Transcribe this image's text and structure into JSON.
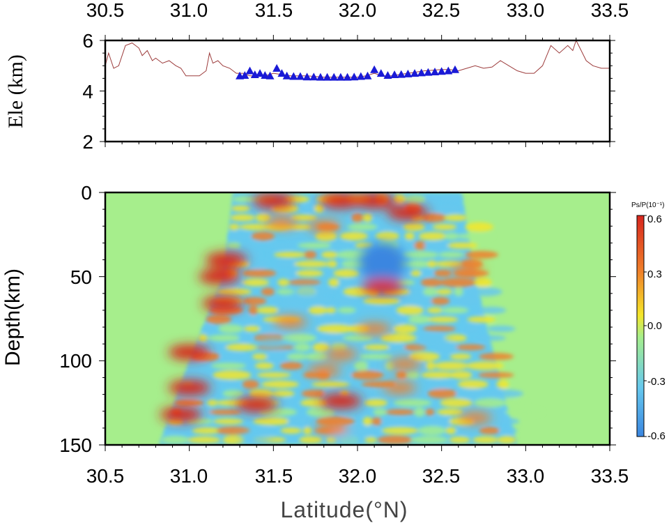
{
  "chart_data": [
    {
      "type": "line",
      "panel": "elevation-profile",
      "ylabel": "Ele (km)",
      "xlim": [
        30.5,
        33.5
      ],
      "ylim": [
        2,
        6
      ],
      "x_ticks": [
        "30.5",
        "31.0",
        "31.5",
        "32.0",
        "32.5",
        "33.0",
        "33.5"
      ],
      "y_ticks": [
        "2",
        "4",
        "6"
      ],
      "line_color": "#9c3b3b",
      "marker_color": "#1a1ad6",
      "series": [
        {
          "kind": "line",
          "x": [
            30.5,
            30.52,
            30.55,
            30.58,
            30.62,
            30.66,
            30.7,
            30.72,
            30.75,
            30.78,
            30.8,
            30.84,
            30.88,
            30.92,
            30.95,
            30.98,
            31.02,
            31.06,
            31.1,
            31.12,
            31.14,
            31.17,
            31.2,
            31.24,
            31.28,
            31.32,
            31.36,
            31.4,
            31.45,
            31.5,
            31.55,
            31.6,
            31.7,
            31.8,
            31.9,
            32.0,
            32.05,
            32.1,
            32.15,
            32.2,
            32.25,
            32.3,
            32.4,
            32.5,
            32.55,
            32.6,
            32.65,
            32.7,
            32.75,
            32.8,
            32.85,
            32.9,
            32.95,
            33.0,
            33.05,
            33.1,
            33.15,
            33.2,
            33.25,
            33.28,
            33.3,
            33.33,
            33.36,
            33.4,
            33.45,
            33.5
          ],
          "y": [
            5.0,
            5.5,
            4.9,
            5.0,
            5.8,
            5.9,
            5.7,
            5.4,
            5.6,
            5.2,
            5.3,
            5.1,
            5.2,
            5.0,
            4.9,
            4.6,
            4.6,
            4.6,
            4.8,
            5.5,
            5.1,
            5.2,
            5.0,
            4.9,
            4.7,
            4.7,
            4.6,
            4.6,
            4.6,
            4.7,
            4.65,
            4.6,
            4.6,
            4.55,
            4.55,
            4.55,
            4.6,
            4.7,
            4.6,
            4.6,
            4.65,
            4.7,
            4.8,
            4.85,
            4.85,
            4.8,
            4.9,
            5.0,
            4.9,
            4.95,
            5.2,
            5.0,
            4.8,
            4.7,
            4.7,
            5.0,
            5.8,
            5.5,
            5.8,
            5.6,
            6.0,
            5.6,
            5.2,
            5.0,
            4.9,
            4.9
          ]
        },
        {
          "kind": "station-markers",
          "x": [
            31.3,
            31.33,
            31.36,
            31.39,
            31.42,
            31.45,
            31.48,
            31.52,
            31.55,
            31.58,
            31.62,
            31.66,
            31.7,
            31.74,
            31.78,
            31.82,
            31.86,
            31.9,
            31.94,
            31.98,
            32.02,
            32.06,
            32.1,
            32.14,
            32.18,
            32.22,
            32.26,
            32.3,
            32.34,
            32.38,
            32.42,
            32.46,
            32.5,
            32.54,
            32.58
          ],
          "y": [
            4.6,
            4.62,
            4.8,
            4.65,
            4.7,
            4.62,
            4.6,
            4.9,
            4.7,
            4.6,
            4.58,
            4.58,
            4.56,
            4.56,
            4.55,
            4.55,
            4.55,
            4.55,
            4.55,
            4.56,
            4.58,
            4.6,
            4.85,
            4.7,
            4.62,
            4.65,
            4.66,
            4.68,
            4.7,
            4.72,
            4.74,
            4.76,
            4.78,
            4.8,
            4.85
          ]
        }
      ]
    },
    {
      "type": "heatmap",
      "panel": "receiver-function-section",
      "xlabel": "Latitude(°N)",
      "ylabel": "Depth(km)",
      "xlim": [
        30.5,
        33.5
      ],
      "ylim": [
        150,
        0
      ],
      "x_ticks": [
        "30.5",
        "31.0",
        "31.5",
        "32.0",
        "32.5",
        "33.0",
        "33.5"
      ],
      "y_ticks": [
        "0",
        "50",
        "100",
        "150"
      ],
      "background_color": "#a6ee8c",
      "coverage": {
        "depths": [
          0,
          50,
          100,
          150
        ],
        "lat_min": [
          31.26,
          31.2,
          31.0,
          30.82
        ],
        "lat_max": [
          32.62,
          32.7,
          32.82,
          32.95
        ]
      },
      "anomalies": [
        {
          "lat": 31.5,
          "depth": 5,
          "value": 0.6
        },
        {
          "lat": 31.9,
          "depth": 5,
          "value": 0.6
        },
        {
          "lat": 32.1,
          "depth": 5,
          "value": 0.6
        },
        {
          "lat": 32.3,
          "depth": 12,
          "value": 0.6
        },
        {
          "lat": 31.55,
          "depth": 18,
          "value": 0.5
        },
        {
          "lat": 31.8,
          "depth": 20,
          "value": 0.5
        },
        {
          "lat": 32.15,
          "depth": 42,
          "value": -0.6
        },
        {
          "lat": 31.22,
          "depth": 40,
          "value": 0.6
        },
        {
          "lat": 31.18,
          "depth": 50,
          "value": 0.6
        },
        {
          "lat": 32.15,
          "depth": 56,
          "value": 0.6
        },
        {
          "lat": 31.2,
          "depth": 66,
          "value": 0.6
        },
        {
          "lat": 32.65,
          "depth": 46,
          "value": 0.5
        },
        {
          "lat": 31.6,
          "depth": 77,
          "value": 0.4
        },
        {
          "lat": 32.1,
          "depth": 81,
          "value": 0.5
        },
        {
          "lat": 31.0,
          "depth": 95,
          "value": 0.6
        },
        {
          "lat": 31.9,
          "depth": 96,
          "value": 0.5
        },
        {
          "lat": 32.28,
          "depth": 102,
          "value": 0.5
        },
        {
          "lat": 31.8,
          "depth": 106,
          "value": 0.5
        },
        {
          "lat": 31.0,
          "depth": 116,
          "value": 0.6
        },
        {
          "lat": 32.25,
          "depth": 116,
          "value": 0.5
        },
        {
          "lat": 31.4,
          "depth": 126,
          "value": 0.6
        },
        {
          "lat": 31.9,
          "depth": 124,
          "value": 0.6
        },
        {
          "lat": 30.95,
          "depth": 132,
          "value": 0.6
        },
        {
          "lat": 32.7,
          "depth": 134,
          "value": 0.5
        },
        {
          "lat": 31.85,
          "depth": 140,
          "value": 0.5
        },
        {
          "lat": 31.4,
          "depth": 147,
          "value": -0.4
        },
        {
          "lat": 31.95,
          "depth": 146,
          "value": -0.4
        },
        {
          "lat": 31.7,
          "depth": 60,
          "value": -0.4
        },
        {
          "lat": 32.45,
          "depth": 88,
          "value": -0.4
        },
        {
          "lat": 31.5,
          "depth": 90,
          "value": -0.35
        }
      ],
      "colorbar": {
        "label": "Ps/P(10⁻¹)",
        "ticks": [
          "0.6",
          "0.3",
          "0.0",
          "-0.3",
          "-0.6"
        ],
        "range": [
          -0.6,
          0.6
        ],
        "colors": [
          "#d7261e",
          "#f07f2a",
          "#f5e62a",
          "#a6ee8c",
          "#66c8ee",
          "#3a86e0"
        ]
      }
    }
  ]
}
